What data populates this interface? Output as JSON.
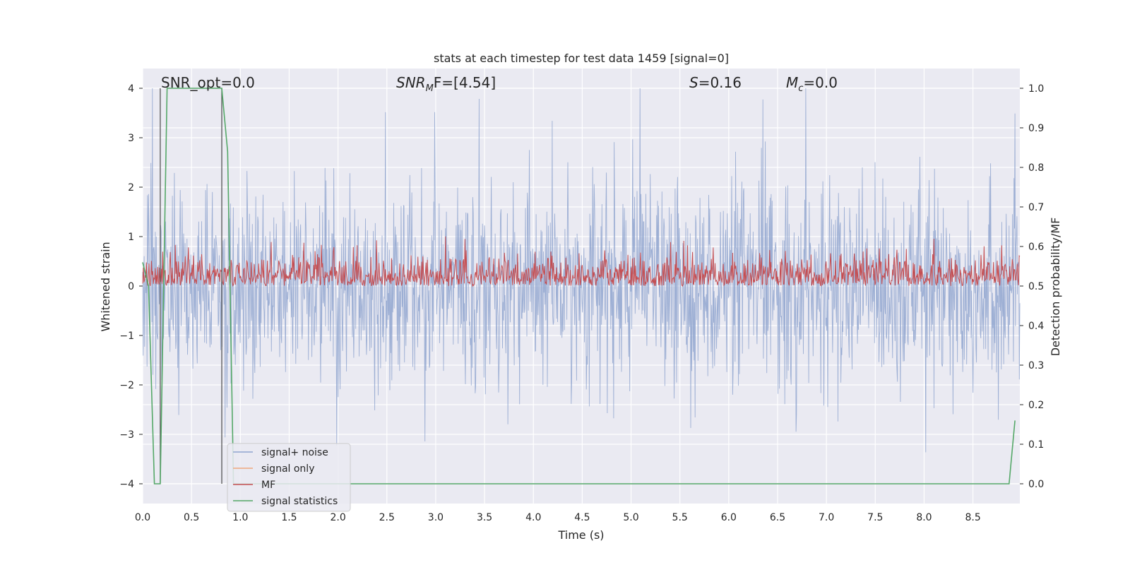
{
  "chart_data": {
    "type": "line",
    "title": "stats at each timestep for test data 1459 [signal=0]",
    "xlabel": "Time (s)",
    "ylabel": "Whitened strain",
    "ylabel_right": "Detection probability/MF",
    "xlim": [
      0.0,
      8.98
    ],
    "ylim": [
      -4.4,
      4.4
    ],
    "ylim_right": [
      -0.05,
      1.05
    ],
    "xticks": [
      "0.0",
      "0.5",
      "1.0",
      "1.5",
      "2.0",
      "2.5",
      "3.0",
      "3.5",
      "4.0",
      "4.5",
      "5.0",
      "5.5",
      "6.0",
      "6.5",
      "7.0",
      "7.5",
      "8.0",
      "8.5"
    ],
    "yticks": [
      "−4",
      "−3",
      "−2",
      "−1",
      "0",
      "1",
      "2",
      "3",
      "4"
    ],
    "yticks_right": [
      "0.0",
      "0.1",
      "0.2",
      "0.3",
      "0.4",
      "0.5",
      "0.6",
      "0.7",
      "0.8",
      "0.9",
      "1.0"
    ],
    "grid": true,
    "legend_position": "lower-left",
    "annotations": {
      "snr_opt": "SNR_opt=0.0",
      "snr_mf_label": "SNR",
      "snr_mf_sub": "M",
      "snr_mf_rest": "F=[4.54]",
      "s_label": "S",
      "s_rest": "=0.16",
      "mc_label": "M",
      "mc_sub": "c",
      "mc_rest": "=0.0"
    },
    "series": [
      {
        "name": "signal+ noise",
        "color": "#8fa5cf",
        "axis": "left",
        "description_range": [
          -4.0,
          4.0
        ],
        "typical_abs_max": 2.5
      },
      {
        "name": "signal only",
        "color": "#f0a77c",
        "axis": "left",
        "values_note": "flat"
      },
      {
        "name": "MF",
        "color": "#c44e52",
        "axis": "right",
        "range": [
          0.5,
          0.63
        ]
      },
      {
        "name": "signal statistics",
        "color": "#55a868",
        "axis": "right",
        "x": [
          0.0,
          0.06,
          0.12,
          0.18,
          0.25,
          0.81,
          0.87,
          0.93,
          8.87,
          8.93
        ],
        "y": [
          0.56,
          0.5,
          0.0,
          0.0,
          1.0,
          1.0,
          0.84,
          0.0,
          0.0,
          0.16
        ]
      }
    ],
    "vertical_markers_x": [
      0.18,
      0.81
    ]
  }
}
